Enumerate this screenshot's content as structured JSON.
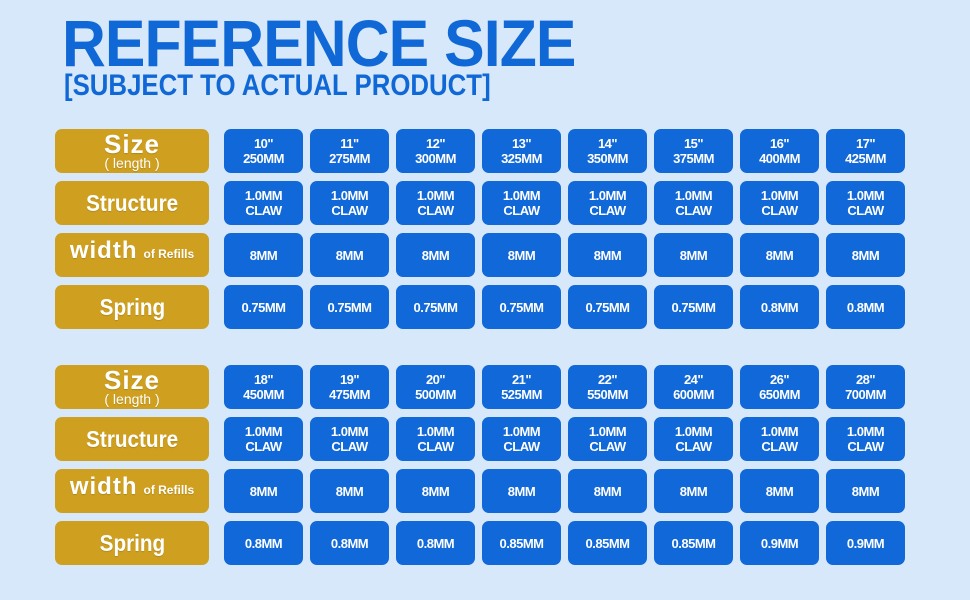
{
  "header": {
    "title": "REFERENCE SIZE",
    "subtitle": "[SUBJECT TO ACTUAL PRODUCT]"
  },
  "colors": {
    "label_bg": "#cfa020",
    "cell_bg": "#1168d8",
    "accent": "#1068d6",
    "background": "#d6e8fa"
  },
  "labels": {
    "size": "Size",
    "size_sub": "( length )",
    "structure": "Structure",
    "width": "width",
    "width_sub": "of Refills",
    "spring": "Spring"
  },
  "tables": [
    {
      "sizes": [
        [
          "10\"",
          "250MM"
        ],
        [
          "11\"",
          "275MM"
        ],
        [
          "12\"",
          "300MM"
        ],
        [
          "13\"",
          "325MM"
        ],
        [
          "14\"",
          "350MM"
        ],
        [
          "15\"",
          "375MM"
        ],
        [
          "16\"",
          "400MM"
        ],
        [
          "17\"",
          "425MM"
        ]
      ],
      "structure": [
        [
          "1.0MM",
          "CLAW"
        ],
        [
          "1.0MM",
          "CLAW"
        ],
        [
          "1.0MM",
          "CLAW"
        ],
        [
          "1.0MM",
          "CLAW"
        ],
        [
          "1.0MM",
          "CLAW"
        ],
        [
          "1.0MM",
          "CLAW"
        ],
        [
          "1.0MM",
          "CLAW"
        ],
        [
          "1.0MM",
          "CLAW"
        ]
      ],
      "width": [
        "8MM",
        "8MM",
        "8MM",
        "8MM",
        "8MM",
        "8MM",
        "8MM",
        "8MM"
      ],
      "spring": [
        "0.75MM",
        "0.75MM",
        "0.75MM",
        "0.75MM",
        "0.75MM",
        "0.75MM",
        "0.8MM",
        "0.8MM"
      ]
    },
    {
      "sizes": [
        [
          "18\"",
          "450MM"
        ],
        [
          "19\"",
          "475MM"
        ],
        [
          "20\"",
          "500MM"
        ],
        [
          "21\"",
          "525MM"
        ],
        [
          "22\"",
          "550MM"
        ],
        [
          "24\"",
          "600MM"
        ],
        [
          "26\"",
          "650MM"
        ],
        [
          "28\"",
          "700MM"
        ]
      ],
      "structure": [
        [
          "1.0MM",
          "CLAW"
        ],
        [
          "1.0MM",
          "CLAW"
        ],
        [
          "1.0MM",
          "CLAW"
        ],
        [
          "1.0MM",
          "CLAW"
        ],
        [
          "1.0MM",
          "CLAW"
        ],
        [
          "1.0MM",
          "CLAW"
        ],
        [
          "1.0MM",
          "CLAW"
        ],
        [
          "1.0MM",
          "CLAW"
        ]
      ],
      "width": [
        "8MM",
        "8MM",
        "8MM",
        "8MM",
        "8MM",
        "8MM",
        "8MM",
        "8MM"
      ],
      "spring": [
        "0.8MM",
        "0.8MM",
        "0.8MM",
        "0.85MM",
        "0.85MM",
        "0.85MM",
        "0.9MM",
        "0.9MM"
      ]
    }
  ]
}
